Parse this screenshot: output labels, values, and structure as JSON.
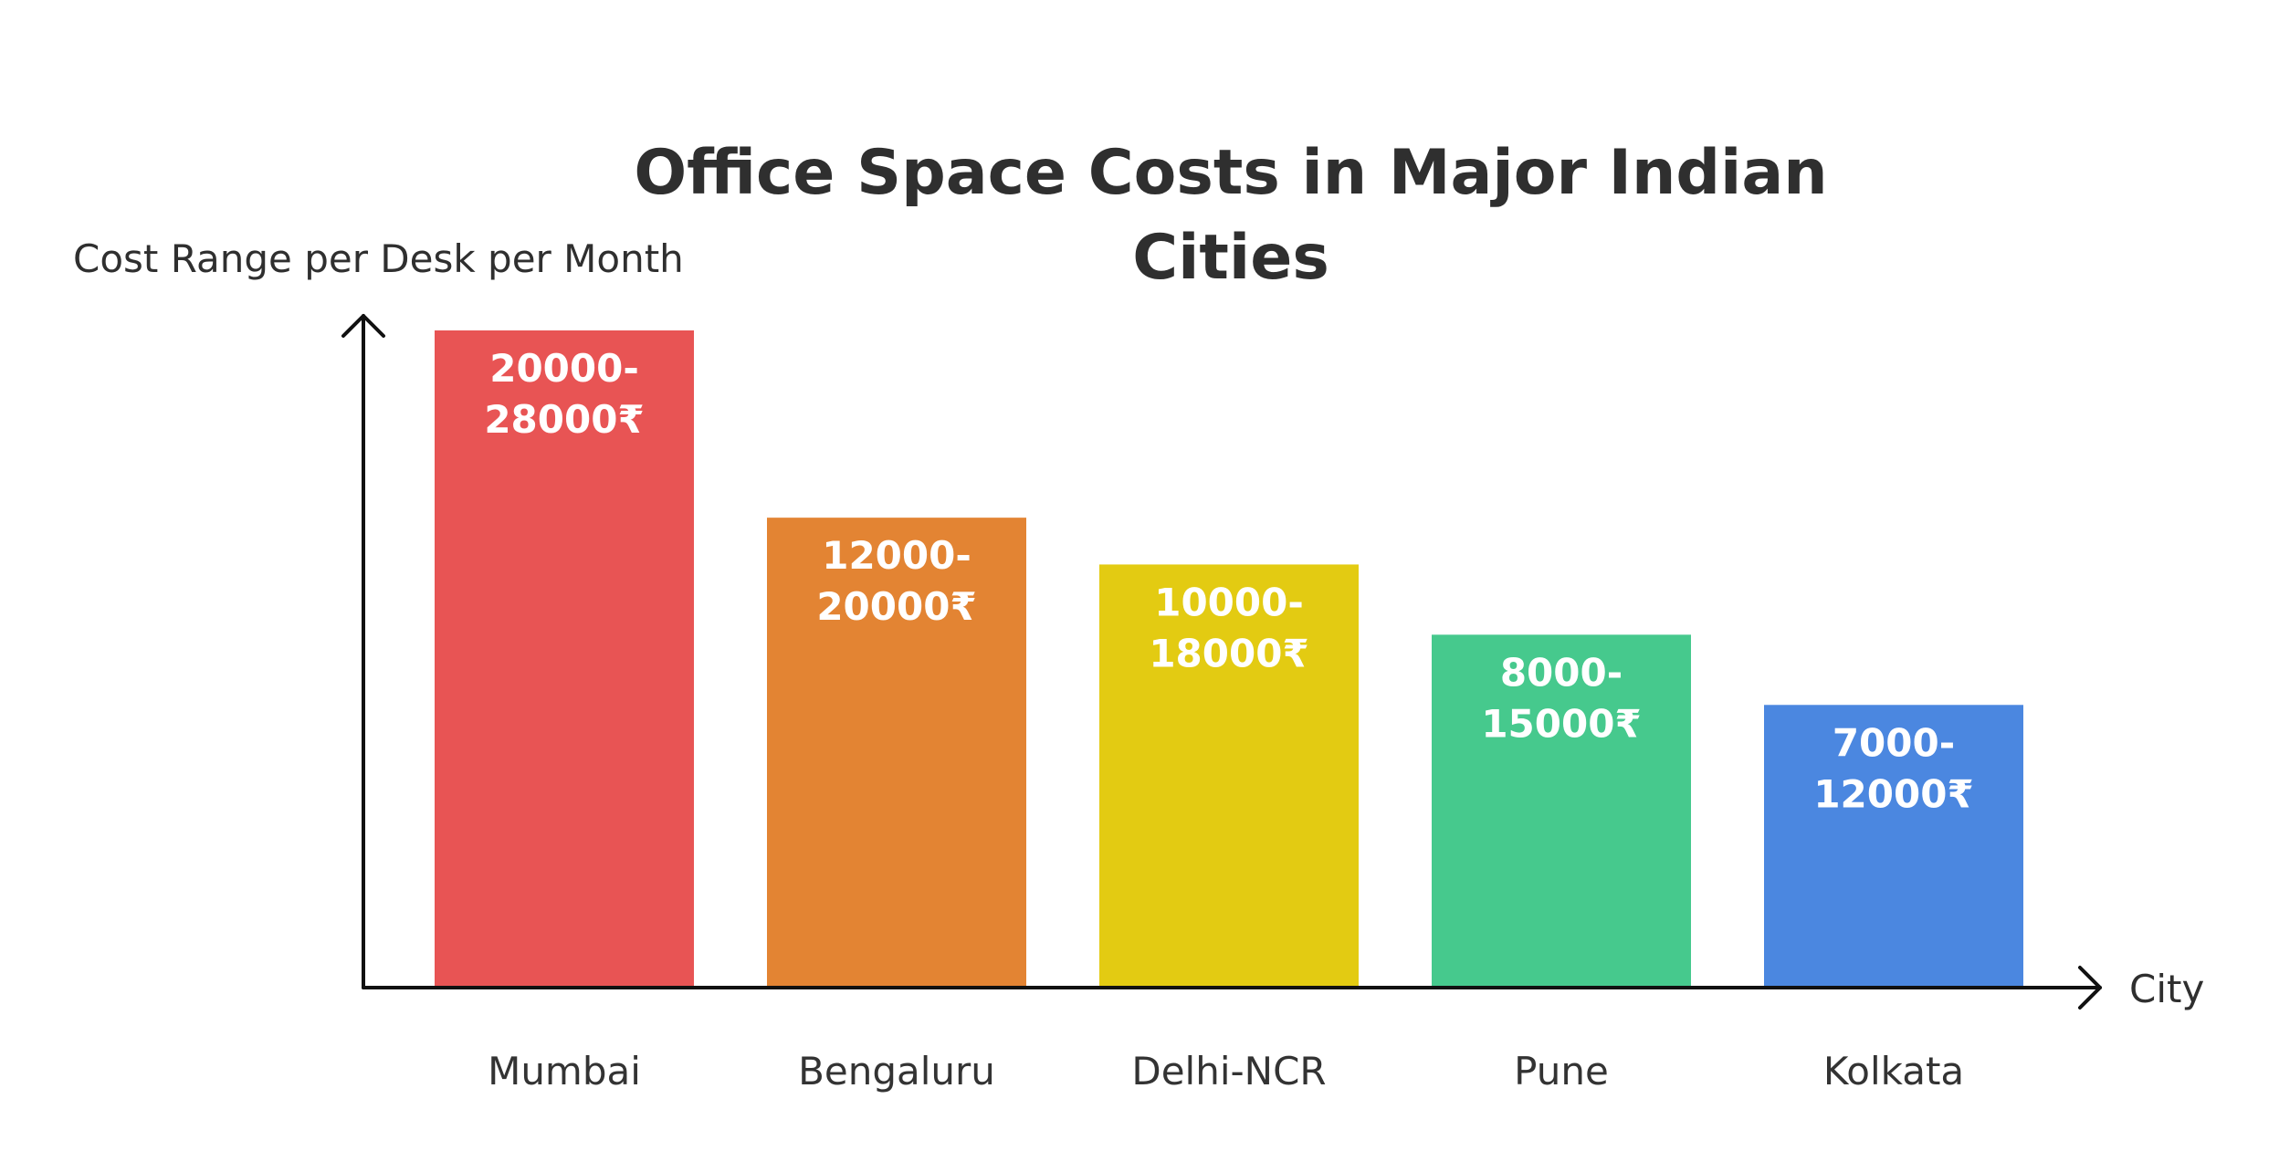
{
  "chart_data": {
    "type": "bar",
    "title": "Office Space Costs in Major Indian Cities",
    "title_lines": [
      "Office Space Costs in Major Indian",
      "Cities"
    ],
    "xlabel": "City",
    "ylabel": "Cost Range per Desk per Month",
    "categories": [
      "Mumbai",
      "Bengaluru",
      "Delhi-NCR",
      "Pune",
      "Kolkata"
    ],
    "values": [
      28000,
      20000,
      18000,
      15000,
      12000
    ],
    "ranges": [
      [
        20000,
        28000
      ],
      [
        12000,
        20000
      ],
      [
        10000,
        18000
      ],
      [
        8000,
        15000
      ],
      [
        7000,
        12000
      ]
    ],
    "data_labels": [
      [
        "20000-",
        "28000₹"
      ],
      [
        "12000-",
        "20000₹"
      ],
      [
        "10000-",
        "18000₹"
      ],
      [
        "8000-",
        "15000₹"
      ],
      [
        "7000-",
        "12000₹"
      ]
    ],
    "colors": [
      "#e85454",
      "#e38433",
      "#e3cb12",
      "#46c98d",
      "#4b87e0"
    ],
    "ylim": [
      0,
      30000
    ],
    "grid": false,
    "legend": "none"
  }
}
